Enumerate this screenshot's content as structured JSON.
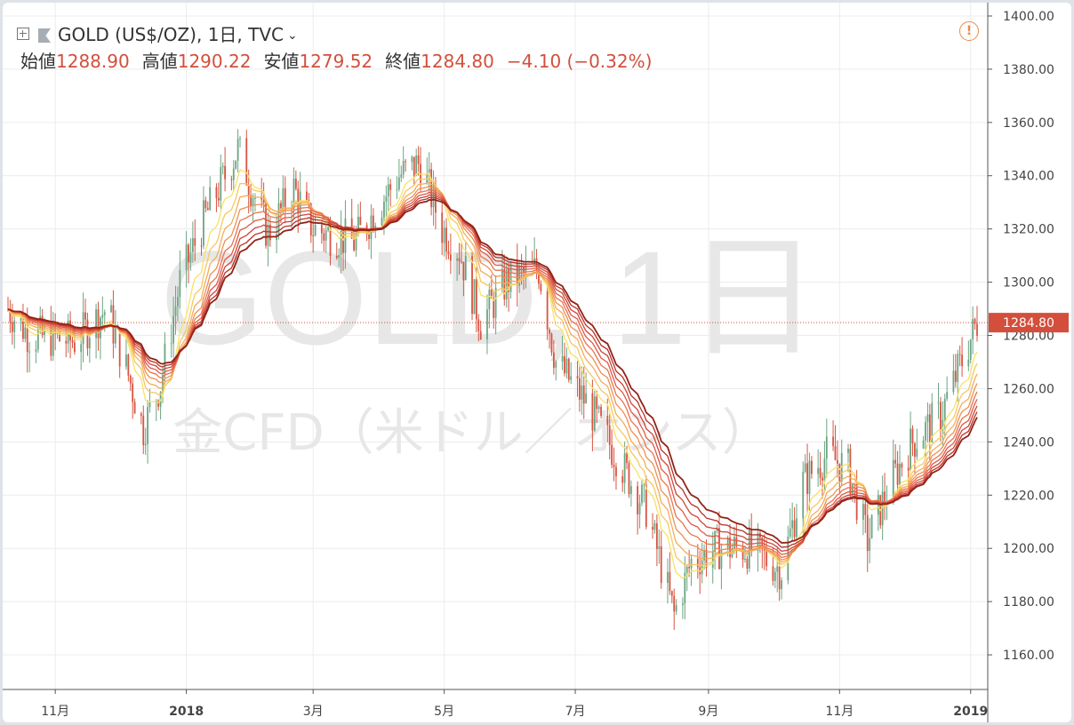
{
  "header": {
    "symbol_line": "GOLD (US$/OZ), 1日, TVC",
    "ohlc": {
      "open_label": "始値",
      "open": "1288.90",
      "high_label": "高値",
      "high": "1290.22",
      "low_label": "安値",
      "low": "1279.52",
      "close_label": "終値",
      "close": "1284.80",
      "change": "−4.10 (−0.32%)"
    }
  },
  "watermark": {
    "line1": "GOLD, 1日",
    "line2": "金CFD（米ドル／オンス）"
  },
  "colors": {
    "up": "#6ba583",
    "down": "#d75442",
    "accent": "#d34f3c",
    "alert": "#ef8a45",
    "ribbon": [
      "#f7e267",
      "#f6c861",
      "#f3ad5b",
      "#ee9055",
      "#e8744f",
      "#df5a46",
      "#cf443a",
      "#b43228",
      "#922317"
    ]
  },
  "icons": {
    "add": "plus-icon",
    "symbol": "flag-icon",
    "menu": "chevron-down-icon",
    "alert": "alert-icon"
  },
  "chart_data": {
    "type": "candlestick",
    "y_range": [
      1147,
      1405
    ],
    "y_ticks": [
      "1400.00",
      "1380.00",
      "1360.00",
      "1340.00",
      "1320.00",
      "1300.00",
      "1280.00",
      "1260.00",
      "1240.00",
      "1220.00",
      "1200.00",
      "1180.00",
      "1160.00"
    ],
    "last_price": "1284.80",
    "x_labels": [
      {
        "label": "11月",
        "date": "2017-11-01",
        "bold": false
      },
      {
        "label": "2018",
        "date": "2018-01-01",
        "bold": true
      },
      {
        "label": "3月",
        "date": "2018-03-01",
        "bold": false
      },
      {
        "label": "5月",
        "date": "2018-05-01",
        "bold": false
      },
      {
        "label": "7月",
        "date": "2018-07-01",
        "bold": false
      },
      {
        "label": "9月",
        "date": "2018-09-01",
        "bold": false
      },
      {
        "label": "11月",
        "date": "2018-11-01",
        "bold": false
      },
      {
        "label": "2019",
        "date": "2019-01-01",
        "bold": true
      }
    ],
    "date_range": [
      "2017-10-10",
      "2019-01-04"
    ],
    "price_path": [
      [
        "2017-10-10",
        1290
      ],
      [
        "2017-10-20",
        1280
      ],
      [
        "2017-11-10",
        1278
      ],
      [
        "2017-11-25",
        1290
      ],
      [
        "2017-12-05",
        1265
      ],
      [
        "2017-12-12",
        1245
      ],
      [
        "2017-12-20",
        1262
      ],
      [
        "2017-12-29",
        1300
      ],
      [
        "2018-01-10",
        1325
      ],
      [
        "2018-01-25",
        1350
      ],
      [
        "2018-02-08",
        1318
      ],
      [
        "2018-02-20",
        1335
      ],
      [
        "2018-03-01",
        1320
      ],
      [
        "2018-03-20",
        1315
      ],
      [
        "2018-04-10",
        1340
      ],
      [
        "2018-04-20",
        1345
      ],
      [
        "2018-04-30",
        1320
      ],
      [
        "2018-05-08",
        1312
      ],
      [
        "2018-05-18",
        1285
      ],
      [
        "2018-05-30",
        1300
      ],
      [
        "2018-06-14",
        1305
      ],
      [
        "2018-06-22",
        1270
      ],
      [
        "2018-07-06",
        1255
      ],
      [
        "2018-07-20",
        1235
      ],
      [
        "2018-08-03",
        1215
      ],
      [
        "2018-08-16",
        1175
      ],
      [
        "2018-08-24",
        1195
      ],
      [
        "2018-09-05",
        1200
      ],
      [
        "2018-09-20",
        1200
      ],
      [
        "2018-10-05",
        1192
      ],
      [
        "2018-10-15",
        1225
      ],
      [
        "2018-10-26",
        1235
      ],
      [
        "2018-11-05",
        1230
      ],
      [
        "2018-11-14",
        1203
      ],
      [
        "2018-11-25",
        1225
      ],
      [
        "2018-12-05",
        1240
      ],
      [
        "2018-12-18",
        1250
      ],
      [
        "2019-01-04",
        1285
      ]
    ],
    "ribbon_offsets": [
      0,
      2.5,
      5,
      7.5,
      10,
      12.5,
      15,
      17.5,
      20
    ]
  }
}
